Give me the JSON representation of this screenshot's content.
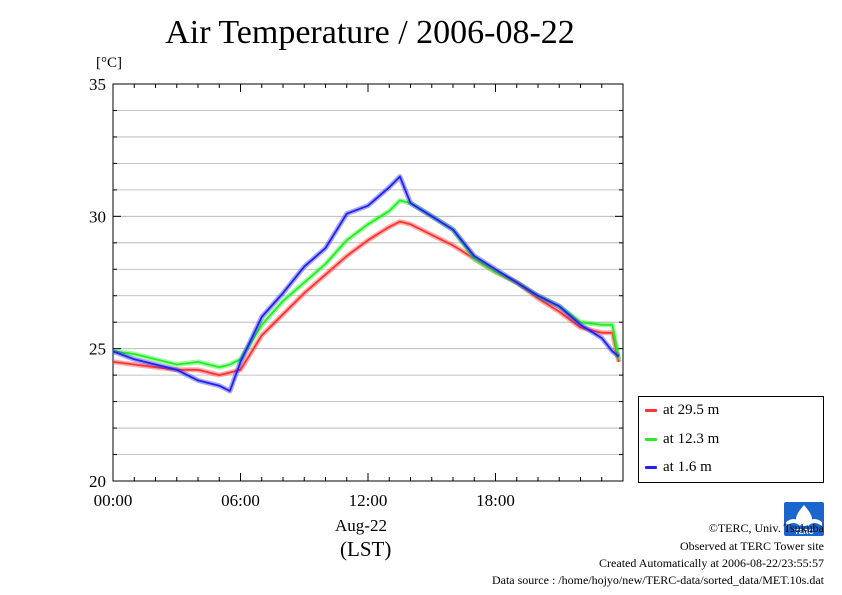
{
  "title": "Air Temperature / 2006-08-22",
  "unit_label": "[°C]",
  "x_axis": {
    "date_label": "Aug-22",
    "tz_label": "(LST)"
  },
  "legend": [
    {
      "label": "at 29.5 m",
      "color": "#ff3333"
    },
    {
      "label": "at 12.3 m",
      "color": "#22ee22"
    },
    {
      "label": "at 1.6 m",
      "color": "#2222ee"
    }
  ],
  "credits": {
    "copyright": "©TERC, Univ. Tsukuba",
    "site": "Observed at TERC Tower site",
    "created": "Created Automatically at 2006-08-22/23:55:57",
    "source": "Data source : /home/hojyo/new/TERC-data/sorted_data/MET.10s.dat"
  },
  "logo_text": "TERC",
  "chart_data": {
    "type": "line",
    "title": "Air Temperature / 2006-08-22",
    "ylabel": "[°C]",
    "xlabel": "Aug-22 (LST)",
    "ylim": [
      20,
      35
    ],
    "xlim": [
      0,
      24
    ],
    "yticks": [
      20,
      25,
      30,
      35
    ],
    "xticks": [
      0,
      6,
      12,
      18
    ],
    "xtick_labels": [
      "00:00",
      "06:00",
      "12:00",
      "18:00"
    ],
    "grid": true,
    "legend_position": "right-bottom-outside",
    "series": [
      {
        "name": "at 29.5 m",
        "color": "#ff3333",
        "x": [
          0,
          1,
          2,
          3,
          4,
          5,
          5.5,
          6,
          7,
          8,
          9,
          10,
          11,
          12,
          13,
          13.5,
          14,
          15,
          16,
          17,
          18,
          19,
          20,
          21,
          22,
          23,
          23.5,
          23.8
        ],
        "y": [
          24.5,
          24.4,
          24.3,
          24.2,
          24.2,
          24.0,
          24.1,
          24.2,
          25.5,
          26.3,
          27.1,
          27.8,
          28.5,
          29.1,
          29.6,
          29.8,
          29.7,
          29.3,
          28.9,
          28.4,
          27.9,
          27.5,
          26.9,
          26.4,
          25.8,
          25.6,
          25.6,
          24.5
        ]
      },
      {
        "name": "at 12.3 m",
        "color": "#22ee22",
        "x": [
          0,
          1,
          2,
          3,
          4,
          5,
          5.5,
          6,
          7,
          8,
          9,
          10,
          11,
          12,
          13,
          13.5,
          14,
          15,
          16,
          17,
          18,
          19,
          20,
          21,
          22,
          23,
          23.5,
          23.8
        ],
        "y": [
          24.9,
          24.8,
          24.6,
          24.4,
          24.5,
          24.3,
          24.4,
          24.6,
          25.9,
          26.8,
          27.5,
          28.2,
          29.1,
          29.7,
          30.2,
          30.6,
          30.5,
          30.0,
          29.5,
          28.4,
          27.9,
          27.5,
          27.0,
          26.6,
          26.0,
          25.9,
          25.9,
          24.6
        ]
      },
      {
        "name": "at 1.6 m",
        "color": "#2222ee",
        "x": [
          0,
          1,
          2,
          3,
          4,
          5,
          5.5,
          6,
          7,
          8,
          9,
          10,
          11,
          12,
          13,
          13.5,
          14,
          15,
          16,
          17,
          18,
          19,
          20,
          21,
          22,
          23,
          23.5,
          23.8
        ],
        "y": [
          24.9,
          24.6,
          24.4,
          24.2,
          23.8,
          23.6,
          23.4,
          24.5,
          26.2,
          27.1,
          28.1,
          28.8,
          30.1,
          30.4,
          31.1,
          31.5,
          30.5,
          30.0,
          29.5,
          28.5,
          28.0,
          27.5,
          27.0,
          26.6,
          25.9,
          25.4,
          24.9,
          24.7
        ]
      }
    ]
  }
}
